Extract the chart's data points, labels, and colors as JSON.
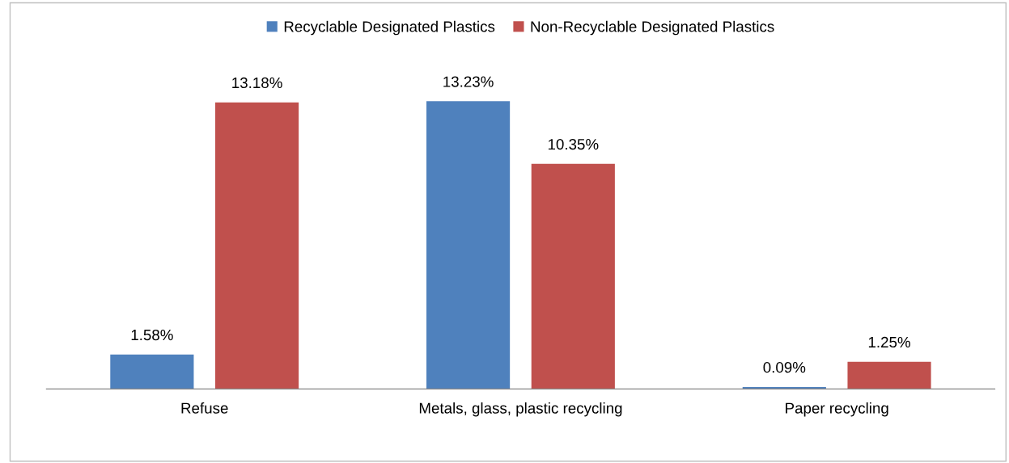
{
  "chart_data": {
    "type": "bar",
    "categories": [
      "Refuse",
      "Metals, glass, plastic recycling",
      "Paper recycling"
    ],
    "series": [
      {
        "name": "Recyclable Designated Plastics",
        "color": "#4f81bd",
        "values": [
          1.58,
          13.23,
          0.09
        ],
        "value_labels": [
          "1.58%",
          "13.23%",
          "0.09%"
        ]
      },
      {
        "name": "Non-Recyclable Designated Plastics",
        "color": "#c0504d",
        "values": [
          13.18,
          10.35,
          1.25
        ],
        "value_labels": [
          "13.18%",
          "10.35%",
          "1.25%"
        ]
      }
    ],
    "legend": "top",
    "grid": false
  }
}
